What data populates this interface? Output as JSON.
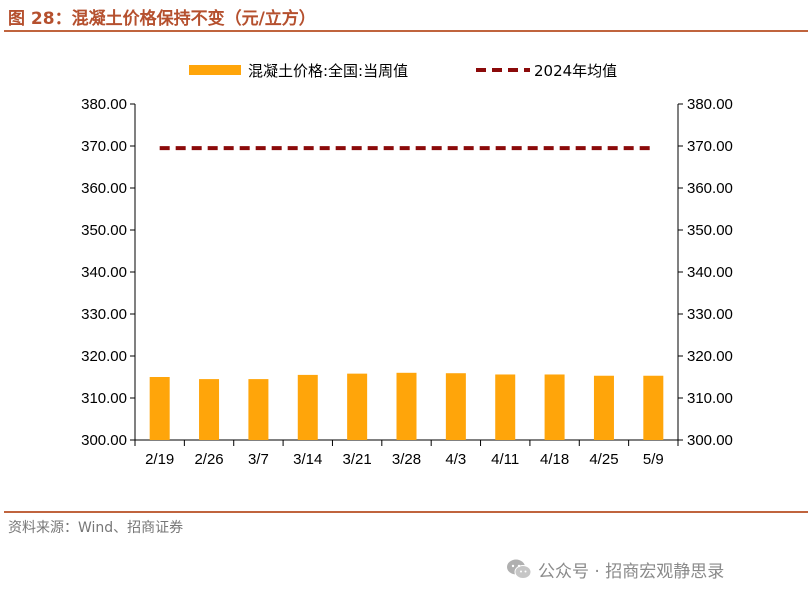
{
  "header": {
    "title": "图 28：混凝土价格保持不变（元/立方）"
  },
  "footer": {
    "source": "资料来源：Wind、招商证券"
  },
  "watermark": {
    "text": "公众号 · 招商宏观静思录",
    "icon": "wechat-icon"
  },
  "colors": {
    "bar": "#ffa50a",
    "avg_line": "#8b0a0a",
    "accent": "#c0643e"
  },
  "chart_data": {
    "type": "bar",
    "title": "",
    "categories": [
      "2/19",
      "2/26",
      "3/7",
      "3/14",
      "3/21",
      "3/28",
      "4/3",
      "4/11",
      "4/18",
      "4/25",
      "5/9"
    ],
    "series": [
      {
        "name": "混凝土价格:全国:当周值",
        "type": "bar",
        "values": [
          315.0,
          314.5,
          314.5,
          315.5,
          315.8,
          316.0,
          315.9,
          315.6,
          315.6,
          315.3,
          315.3
        ]
      },
      {
        "name": "2024年均值",
        "type": "line",
        "style": "dashed",
        "values": [
          369.5,
          369.5,
          369.5,
          369.5,
          369.5,
          369.5,
          369.5,
          369.5,
          369.5,
          369.5,
          369.5
        ]
      }
    ],
    "ylim": [
      300,
      380
    ],
    "yticks": [
      "300.00",
      "310.00",
      "320.00",
      "330.00",
      "340.00",
      "350.00",
      "360.00",
      "370.00",
      "380.00"
    ],
    "secondary_yticks": [
      "300.00",
      "310.00",
      "320.00",
      "330.00",
      "340.00",
      "350.00",
      "360.00",
      "370.00",
      "380.00"
    ],
    "legend_position": "top-center",
    "grid": false
  }
}
